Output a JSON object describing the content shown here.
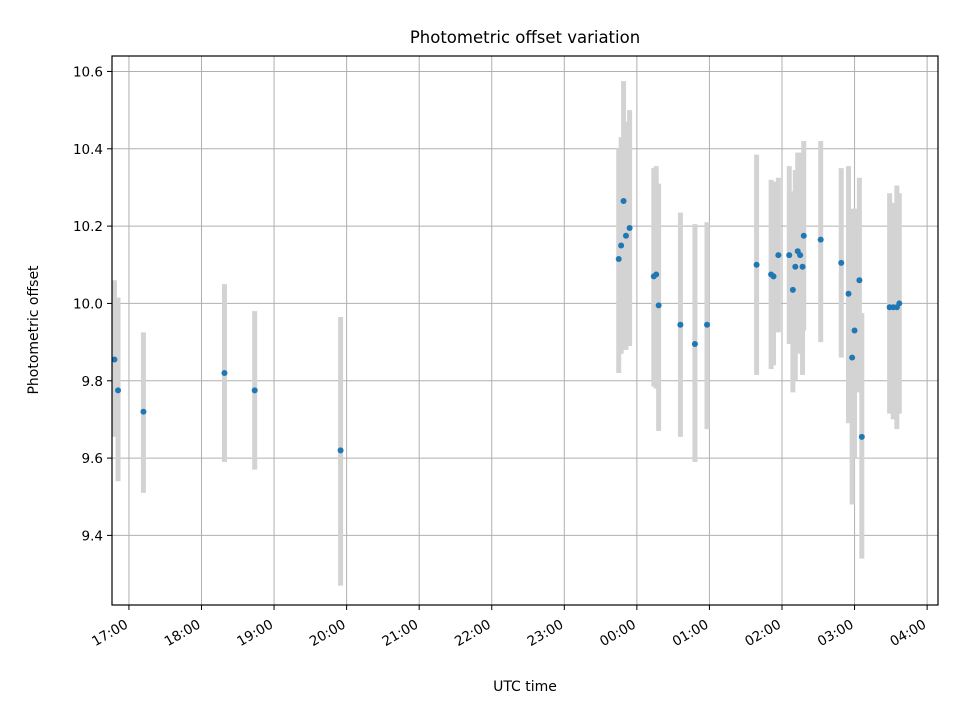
{
  "chart_data": {
    "type": "scatter",
    "title": "Photometric offset variation",
    "xlabel": "UTC time",
    "ylabel": "Photometric offset",
    "xlim": [
      "16:46",
      "04:09"
    ],
    "ylim": [
      9.22,
      10.64
    ],
    "x_ticks": [
      "17:00",
      "18:00",
      "19:00",
      "20:00",
      "21:00",
      "22:00",
      "23:00",
      "00:00",
      "01:00",
      "02:00",
      "03:00",
      "04:00"
    ],
    "y_ticks": [
      "9.4",
      "9.6",
      "9.8",
      "10.0",
      "10.2",
      "10.4",
      "10.6"
    ],
    "grid": true,
    "errorbar_color": "#d3d3d3",
    "marker_color": "#1f77b4",
    "points": [
      {
        "t": "16:48",
        "y": 9.855,
        "lo": 9.655,
        "hi": 10.06
      },
      {
        "t": "16:51",
        "y": 9.775,
        "lo": 9.54,
        "hi": 10.015
      },
      {
        "t": "17:12",
        "y": 9.72,
        "lo": 9.51,
        "hi": 9.925
      },
      {
        "t": "18:19",
        "y": 9.82,
        "lo": 9.59,
        "hi": 10.05
      },
      {
        "t": "18:44",
        "y": 9.775,
        "lo": 9.57,
        "hi": 9.98
      },
      {
        "t": "19:55",
        "y": 9.62,
        "lo": 9.27,
        "hi": 9.965
      },
      {
        "t": "23:45",
        "y": 10.115,
        "lo": 9.82,
        "hi": 10.4
      },
      {
        "t": "23:47",
        "y": 10.15,
        "lo": 9.87,
        "hi": 10.43
      },
      {
        "t": "23:49",
        "y": 10.265,
        "lo": 9.98,
        "hi": 10.575
      },
      {
        "t": "23:51",
        "y": 10.175,
        "lo": 9.88,
        "hi": 10.47
      },
      {
        "t": "23:54",
        "y": 10.195,
        "lo": 9.89,
        "hi": 10.5
      },
      {
        "t": "00:14",
        "y": 10.07,
        "lo": 9.785,
        "hi": 10.35
      },
      {
        "t": "00:16",
        "y": 10.075,
        "lo": 9.78,
        "hi": 10.355
      },
      {
        "t": "00:18",
        "y": 9.995,
        "lo": 9.67,
        "hi": 10.31
      },
      {
        "t": "00:36",
        "y": 9.945,
        "lo": 9.655,
        "hi": 10.235
      },
      {
        "t": "00:48",
        "y": 9.895,
        "lo": 9.59,
        "hi": 10.205
      },
      {
        "t": "00:58",
        "y": 9.945,
        "lo": 9.675,
        "hi": 10.21
      },
      {
        "t": "01:39",
        "y": 10.1,
        "lo": 9.815,
        "hi": 10.385
      },
      {
        "t": "01:51",
        "y": 10.075,
        "lo": 9.83,
        "hi": 10.32
      },
      {
        "t": "01:53",
        "y": 10.07,
        "lo": 9.84,
        "hi": 10.315
      },
      {
        "t": "01:57",
        "y": 10.125,
        "lo": 9.925,
        "hi": 10.325
      },
      {
        "t": "02:06",
        "y": 10.125,
        "lo": 9.895,
        "hi": 10.355
      },
      {
        "t": "02:09",
        "y": 10.035,
        "lo": 9.77,
        "hi": 10.29
      },
      {
        "t": "02:11",
        "y": 10.095,
        "lo": 9.8,
        "hi": 10.345
      },
      {
        "t": "02:13",
        "y": 10.135,
        "lo": 9.875,
        "hi": 10.39
      },
      {
        "t": "02:15",
        "y": 10.125,
        "lo": 9.87,
        "hi": 10.39
      },
      {
        "t": "02:17",
        "y": 10.095,
        "lo": 9.815,
        "hi": 10.37
      },
      {
        "t": "02:18",
        "y": 10.175,
        "lo": 9.93,
        "hi": 10.42
      },
      {
        "t": "02:32",
        "y": 10.165,
        "lo": 9.9,
        "hi": 10.42
      },
      {
        "t": "02:49",
        "y": 10.105,
        "lo": 9.86,
        "hi": 10.35
      },
      {
        "t": "02:55",
        "y": 10.025,
        "lo": 9.69,
        "hi": 10.355
      },
      {
        "t": "02:58",
        "y": 9.86,
        "lo": 9.48,
        "hi": 10.245
      },
      {
        "t": "03:00",
        "y": 9.93,
        "lo": 9.6,
        "hi": 10.245
      },
      {
        "t": "03:04",
        "y": 10.06,
        "lo": 9.77,
        "hi": 10.325
      },
      {
        "t": "03:06",
        "y": 9.655,
        "lo": 9.34,
        "hi": 9.975
      },
      {
        "t": "03:29",
        "y": 9.99,
        "lo": 9.715,
        "hi": 10.285
      },
      {
        "t": "03:32",
        "y": 9.99,
        "lo": 9.7,
        "hi": 10.26
      },
      {
        "t": "03:35",
        "y": 9.99,
        "lo": 9.675,
        "hi": 10.305
      },
      {
        "t": "03:37",
        "y": 10.0,
        "lo": 9.715,
        "hi": 10.285
      }
    ]
  }
}
